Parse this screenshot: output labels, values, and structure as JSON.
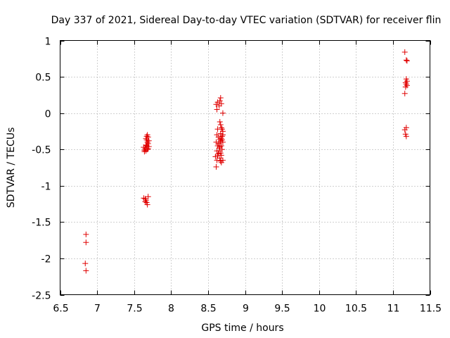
{
  "chart_data": {
    "type": "scatter",
    "title": "Day 337 of 2021, Sidereal Day-to-day VTEC variation (SDTVAR) for receiver flin",
    "xlabel": "GPS time / hours",
    "ylabel": "SDTVAR / TECUs",
    "xlim": [
      6.5,
      11.5
    ],
    "ylim": [
      -2.5,
      1
    ],
    "grid": true,
    "marker": "+",
    "marker_color": "#e00000",
    "x_ticks": [
      {
        "value": 6.5,
        "label": "6.5"
      },
      {
        "value": 7,
        "label": "7"
      },
      {
        "value": 7.5,
        "label": "7.5"
      },
      {
        "value": 8,
        "label": "8"
      },
      {
        "value": 8.5,
        "label": "8.5"
      },
      {
        "value": 9,
        "label": "9"
      },
      {
        "value": 9.5,
        "label": "9.5"
      },
      {
        "value": 10,
        "label": "10"
      },
      {
        "value": 10.5,
        "label": "10.5"
      },
      {
        "value": 11,
        "label": "11"
      },
      {
        "value": 11.5,
        "label": "11.5"
      }
    ],
    "y_ticks": [
      {
        "value": 1,
        "label": "1"
      },
      {
        "value": 0.5,
        "label": "0.5"
      },
      {
        "value": 0,
        "label": "0"
      },
      {
        "value": -0.5,
        "label": "-0.5"
      },
      {
        "value": -1,
        "label": "-1"
      },
      {
        "value": -1.5,
        "label": "-1.5"
      },
      {
        "value": -2,
        "label": "-2"
      },
      {
        "value": -2.5,
        "label": "-2.5"
      }
    ],
    "series": [
      {
        "name": "SDTVAR",
        "points": [
          [
            6.85,
            -1.67
          ],
          [
            6.85,
            -1.78
          ],
          [
            6.84,
            -2.07
          ],
          [
            6.85,
            -2.17
          ],
          [
            7.63,
            -0.47
          ],
          [
            7.65,
            -0.49
          ],
          [
            7.66,
            -0.52
          ],
          [
            7.64,
            -0.53
          ],
          [
            7.68,
            -0.5
          ],
          [
            7.67,
            -0.45
          ],
          [
            7.68,
            -0.4
          ],
          [
            7.67,
            -0.37
          ],
          [
            7.69,
            -0.33
          ],
          [
            7.68,
            -0.3
          ],
          [
            7.66,
            -0.35
          ],
          [
            7.7,
            -0.38
          ],
          [
            7.69,
            -0.42
          ],
          [
            7.66,
            -0.44
          ],
          [
            7.7,
            -0.46
          ],
          [
            7.64,
            -0.51
          ],
          [
            7.69,
            -0.49
          ],
          [
            7.67,
            -0.32
          ],
          [
            7.63,
            -1.17
          ],
          [
            7.65,
            -1.18
          ],
          [
            7.66,
            -1.2
          ],
          [
            7.67,
            -1.23
          ],
          [
            7.68,
            -1.26
          ],
          [
            7.69,
            -1.15
          ],
          [
            7.65,
            -1.22
          ],
          [
            8.61,
            0.12
          ],
          [
            8.63,
            0.15
          ],
          [
            8.66,
            0.17
          ],
          [
            8.67,
            0.21
          ],
          [
            8.65,
            0.1
          ],
          [
            8.62,
            0.05
          ],
          [
            8.68,
            0.13
          ],
          [
            8.7,
            0.0
          ],
          [
            8.62,
            -0.3
          ],
          [
            8.64,
            -0.33
          ],
          [
            8.66,
            -0.36
          ],
          [
            8.61,
            -0.4
          ],
          [
            8.63,
            -0.45
          ],
          [
            8.65,
            -0.48
          ],
          [
            8.62,
            -0.52
          ],
          [
            8.64,
            -0.56
          ],
          [
            8.6,
            -0.6
          ],
          [
            8.62,
            -0.65
          ],
          [
            8.61,
            -0.74
          ],
          [
            8.63,
            -0.58
          ],
          [
            8.65,
            -0.52
          ],
          [
            8.66,
            -0.4
          ],
          [
            8.67,
            -0.38
          ],
          [
            8.68,
            -0.35
          ],
          [
            8.69,
            -0.32
          ],
          [
            8.7,
            -0.4
          ],
          [
            8.67,
            -0.28
          ],
          [
            8.68,
            -0.2
          ],
          [
            8.69,
            -0.22
          ],
          [
            8.7,
            -0.25
          ],
          [
            8.66,
            -0.12
          ],
          [
            8.67,
            -0.16
          ],
          [
            8.68,
            -0.45
          ],
          [
            8.69,
            -0.5
          ],
          [
            8.67,
            -0.55
          ],
          [
            8.66,
            -0.62
          ],
          [
            8.67,
            -0.66
          ],
          [
            8.68,
            -0.68
          ],
          [
            8.7,
            -0.65
          ],
          [
            8.64,
            -0.42
          ],
          [
            8.66,
            -0.46
          ],
          [
            8.7,
            -0.3
          ],
          [
            8.69,
            -0.37
          ],
          [
            8.63,
            -0.22
          ],
          [
            8.68,
            -0.58
          ],
          [
            11.16,
            0.84
          ],
          [
            11.18,
            0.73
          ],
          [
            11.19,
            0.72
          ],
          [
            11.18,
            0.47
          ],
          [
            11.19,
            0.44
          ],
          [
            11.17,
            0.42
          ],
          [
            11.18,
            0.4
          ],
          [
            11.19,
            0.38
          ],
          [
            11.17,
            0.36
          ],
          [
            11.16,
            0.27
          ],
          [
            11.16,
            -0.23
          ],
          [
            11.18,
            -0.2
          ],
          [
            11.17,
            -0.29
          ],
          [
            11.18,
            -0.32
          ]
        ]
      }
    ]
  }
}
